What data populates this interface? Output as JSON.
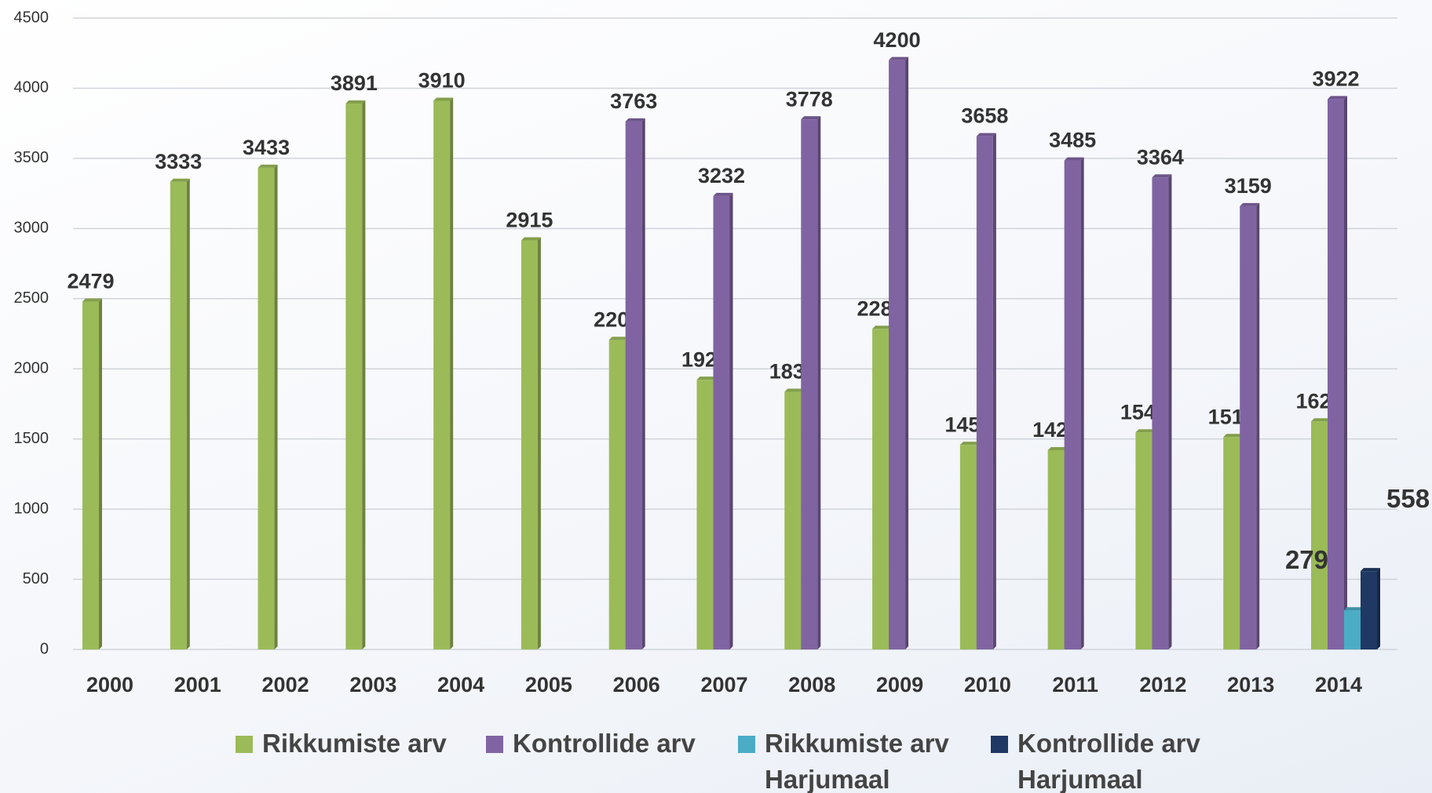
{
  "chart_data": {
    "type": "bar",
    "categories": [
      "2000",
      "2001",
      "2002",
      "2003",
      "2004",
      "2005",
      "2006",
      "2007",
      "2008",
      "2009",
      "2010",
      "2011",
      "2012",
      "2013",
      "2014"
    ],
    "series": [
      {
        "name": "Rikkumiste arv",
        "color": "#9bbb59",
        "values": [
          2479,
          3333,
          3433,
          3891,
          3910,
          2915,
          2206,
          1922,
          1836,
          2285,
          1458,
          1420,
          1547,
          1514,
          1625
        ]
      },
      {
        "name": "Kontrollide arv",
        "color": "#8064a2",
        "values": [
          null,
          null,
          null,
          null,
          null,
          null,
          3763,
          3232,
          3778,
          4200,
          3658,
          3485,
          3364,
          3159,
          3922
        ]
      },
      {
        "name": "Rikkumiste arv Harjumaal",
        "color": "#4bacc6",
        "values": [
          null,
          null,
          null,
          null,
          null,
          null,
          null,
          null,
          null,
          null,
          null,
          null,
          null,
          null,
          279
        ]
      },
      {
        "name": "Kontrollide arv Harjumaal",
        "color": "#1f3864",
        "values": [
          null,
          null,
          null,
          null,
          null,
          null,
          null,
          null,
          null,
          null,
          null,
          null,
          null,
          null,
          558
        ]
      }
    ],
    "ylim": [
      0,
      4500
    ],
    "yticks": [
      0,
      500,
      1000,
      1500,
      2000,
      2500,
      3000,
      3500,
      4000,
      4500
    ],
    "grid": true,
    "legend": "bottom"
  }
}
